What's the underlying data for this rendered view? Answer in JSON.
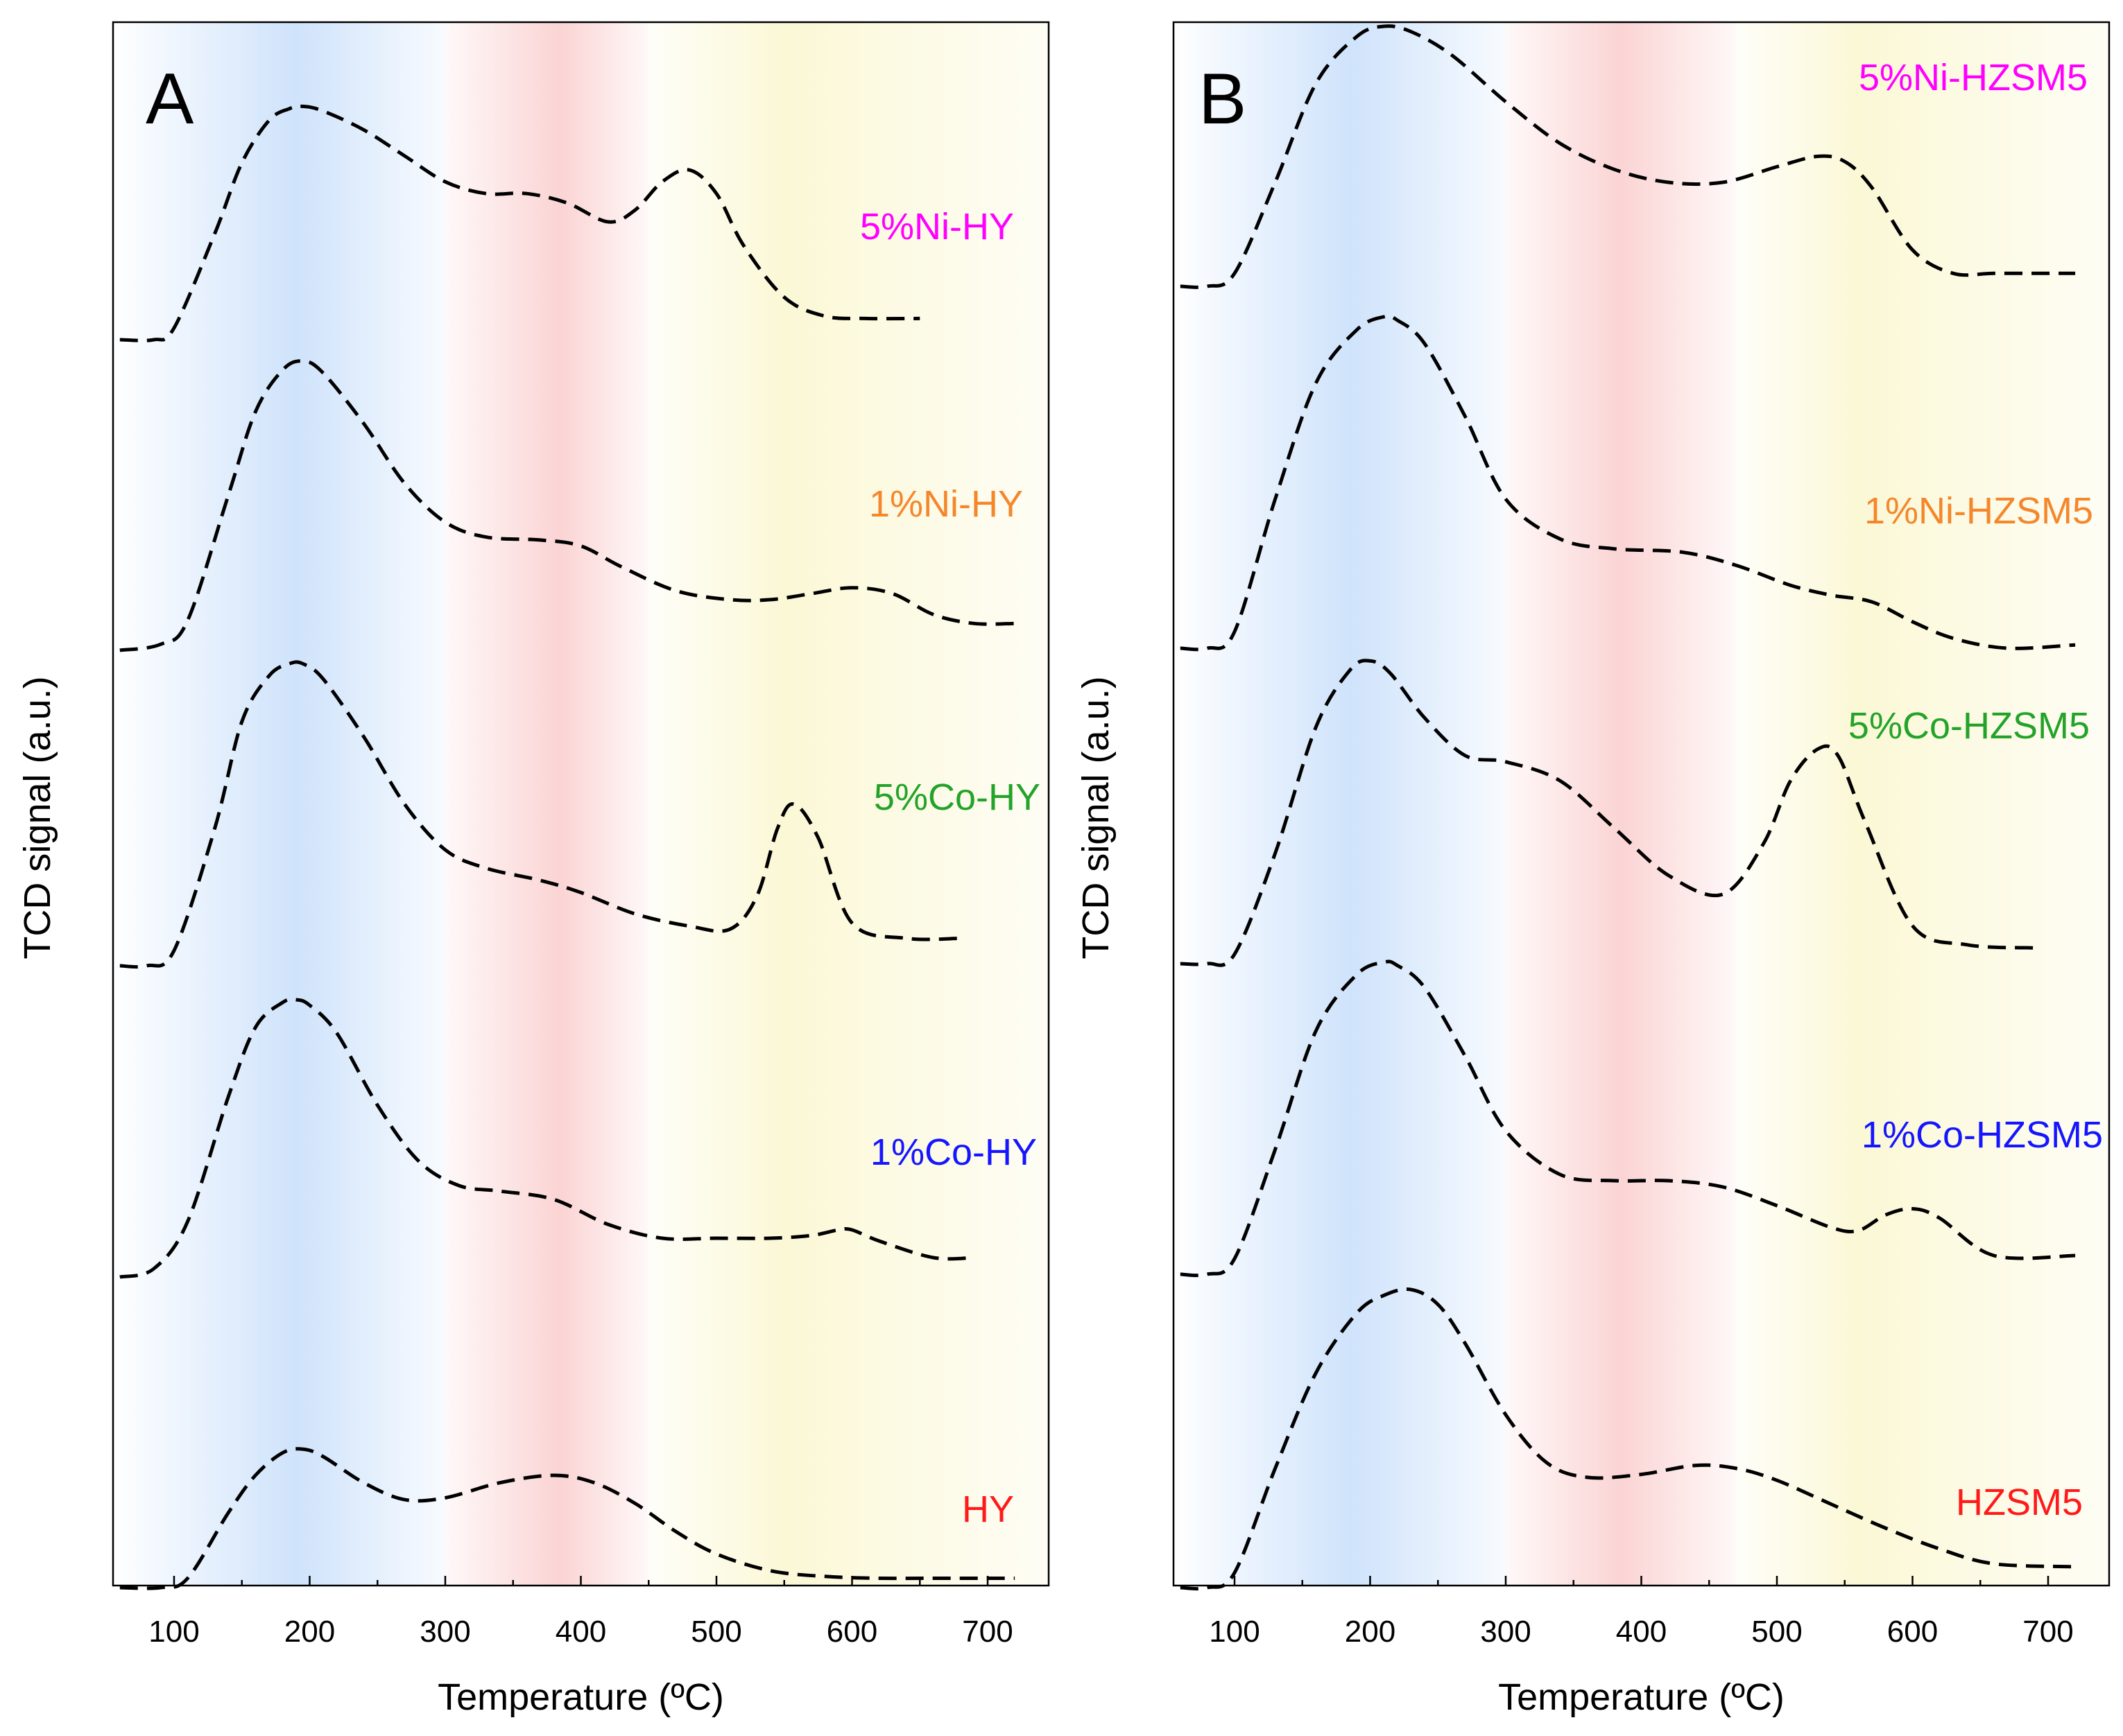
{
  "colors": {
    "band_low": "#cfe3fb",
    "band_mid": "#fbd4d4",
    "band_high": "#fbf8d6",
    "curve": "#000000"
  },
  "chart_data": [
    {
      "type": "line",
      "panel": "A",
      "xlabel": "Temperature (ºC)",
      "ylabel": "TCD signal (a.u.)",
      "xlim": [
        55,
        745
      ],
      "xticks": [
        100,
        200,
        300,
        400,
        500,
        600,
        700
      ],
      "yticks": "none",
      "shaded_regions": [
        {
          "from": 55,
          "to": 300,
          "peak": 190,
          "color": "#cfe3fb"
        },
        {
          "from": 300,
          "to": 450,
          "peak": 385,
          "color": "#fbd4d4"
        },
        {
          "from": 450,
          "to": 745,
          "peak": 550,
          "color": "#fbf8d6"
        }
      ],
      "series": [
        {
          "name": "5%Ni-HY",
          "label_color": "#ff00ff",
          "x": [
            60,
            85,
            100,
            130,
            150,
            170,
            185,
            195,
            210,
            240,
            270,
            300,
            330,
            360,
            390,
            420,
            440,
            460,
            480,
            500,
            520,
            550,
            580,
            610,
            650
          ],
          "y": [
            0.0,
            0.0,
            0.05,
            0.45,
            0.75,
            0.93,
            0.98,
            0.99,
            0.97,
            0.89,
            0.78,
            0.67,
            0.62,
            0.62,
            0.58,
            0.5,
            0.55,
            0.67,
            0.72,
            0.62,
            0.4,
            0.18,
            0.1,
            0.09,
            0.09
          ]
        },
        {
          "name": "1%Ni-HY",
          "label_color": "#f5872b",
          "x": [
            60,
            90,
            110,
            140,
            160,
            180,
            195,
            210,
            240,
            270,
            300,
            330,
            370,
            400,
            430,
            470,
            510,
            540,
            570,
            600,
            630,
            660,
            690,
            720
          ],
          "y": [
            0.0,
            0.02,
            0.1,
            0.52,
            0.8,
            0.94,
            0.97,
            0.93,
            0.76,
            0.56,
            0.43,
            0.38,
            0.37,
            0.35,
            0.28,
            0.2,
            0.17,
            0.17,
            0.19,
            0.21,
            0.19,
            0.12,
            0.09,
            0.09
          ]
        },
        {
          "name": "5%Co-HY",
          "label_color": "#23a32a",
          "x": [
            60,
            80,
            100,
            130,
            150,
            170,
            185,
            195,
            210,
            240,
            270,
            300,
            330,
            370,
            400,
            440,
            480,
            510,
            530,
            545,
            557,
            575,
            600,
            640,
            680
          ],
          "y": [
            0.0,
            0.0,
            0.05,
            0.45,
            0.8,
            0.95,
            0.99,
            0.99,
            0.94,
            0.75,
            0.53,
            0.38,
            0.32,
            0.28,
            0.24,
            0.17,
            0.13,
            0.12,
            0.23,
            0.45,
            0.53,
            0.42,
            0.14,
            0.09,
            0.09
          ]
        },
        {
          "name": "1%Co-HY",
          "label_color": "#1515ff",
          "x": [
            60,
            85,
            110,
            140,
            160,
            180,
            190,
            200,
            220,
            250,
            280,
            310,
            340,
            380,
            420,
            460,
            500,
            540,
            570,
            590,
            600,
            620,
            660,
            690
          ],
          "y": [
            0.0,
            0.03,
            0.2,
            0.65,
            0.9,
            0.99,
            1.0,
            0.98,
            0.88,
            0.62,
            0.42,
            0.33,
            0.31,
            0.28,
            0.19,
            0.14,
            0.14,
            0.14,
            0.15,
            0.17,
            0.17,
            0.13,
            0.07,
            0.07
          ]
        },
        {
          "name": "HY",
          "label_color": "#ff1a1a",
          "x": [
            60,
            90,
            110,
            140,
            160,
            180,
            195,
            210,
            240,
            270,
            300,
            340,
            380,
            410,
            440,
            470,
            500,
            540,
            580,
            620,
            660,
            700,
            720
          ],
          "y": [
            0.0,
            0.0,
            0.05,
            0.4,
            0.6,
            0.72,
            0.74,
            0.7,
            0.56,
            0.47,
            0.48,
            0.56,
            0.6,
            0.56,
            0.45,
            0.3,
            0.18,
            0.09,
            0.06,
            0.05,
            0.05,
            0.05,
            0.05
          ]
        }
      ]
    },
    {
      "type": "line",
      "panel": "B",
      "xlabel": "Temperature (ºC)",
      "ylabel": "TCD signal (a.u.)",
      "xlim": [
        55,
        745
      ],
      "xticks": [
        100,
        200,
        300,
        400,
        500,
        600,
        700
      ],
      "yticks": "none",
      "shaded_regions": [
        {
          "from": 55,
          "to": 300,
          "peak": 185,
          "color": "#cfe3fb"
        },
        {
          "from": 300,
          "to": 470,
          "peak": 385,
          "color": "#fbd4d4"
        },
        {
          "from": 470,
          "to": 745,
          "peak": 560,
          "color": "#fbf8d6"
        }
      ],
      "series": [
        {
          "name": "5%Ni-HZSM5",
          "label_color": "#ff00ff",
          "x": [
            60,
            80,
            100,
            130,
            160,
            190,
            210,
            230,
            260,
            300,
            340,
            380,
            420,
            460,
            500,
            530,
            550,
            570,
            600,
            630,
            660,
            700,
            720
          ],
          "y": [
            0.0,
            0.0,
            0.05,
            0.4,
            0.78,
            0.96,
            1.0,
            0.98,
            0.89,
            0.71,
            0.55,
            0.45,
            0.4,
            0.4,
            0.46,
            0.5,
            0.48,
            0.38,
            0.14,
            0.05,
            0.05,
            0.05,
            0.05
          ]
        },
        {
          "name": "1%Ni-HZSM5",
          "label_color": "#f5872b",
          "x": [
            60,
            80,
            100,
            130,
            160,
            190,
            210,
            220,
            240,
            270,
            300,
            340,
            380,
            430,
            470,
            510,
            540,
            570,
            600,
            630,
            670,
            720
          ],
          "y": [
            0.0,
            0.0,
            0.05,
            0.45,
            0.8,
            0.96,
            1.0,
            0.99,
            0.92,
            0.7,
            0.45,
            0.33,
            0.3,
            0.29,
            0.25,
            0.19,
            0.16,
            0.14,
            0.08,
            0.03,
            0.0,
            0.01
          ]
        },
        {
          "name": "5%Co-HZSM5",
          "label_color": "#23a32a",
          "x": [
            60,
            80,
            100,
            130,
            160,
            185,
            200,
            215,
            240,
            270,
            300,
            340,
            380,
            420,
            460,
            490,
            510,
            530,
            545,
            565,
            600,
            640,
            690
          ],
          "y": [
            0.0,
            0.0,
            0.03,
            0.35,
            0.75,
            0.93,
            0.96,
            0.92,
            0.78,
            0.66,
            0.64,
            0.58,
            0.43,
            0.28,
            0.22,
            0.38,
            0.58,
            0.68,
            0.66,
            0.45,
            0.12,
            0.06,
            0.05
          ]
        },
        {
          "name": "1%Co-HZSM5",
          "label_color": "#1515ff",
          "x": [
            60,
            80,
            100,
            130,
            160,
            190,
            210,
            220,
            240,
            270,
            300,
            340,
            380,
            420,
            460,
            500,
            540,
            560,
            580,
            600,
            620,
            660,
            720
          ],
          "y": [
            0.0,
            0.0,
            0.05,
            0.4,
            0.78,
            0.96,
            1.0,
            0.99,
            0.92,
            0.7,
            0.46,
            0.32,
            0.3,
            0.3,
            0.28,
            0.22,
            0.15,
            0.14,
            0.19,
            0.21,
            0.18,
            0.06,
            0.06
          ]
        },
        {
          "name": "HZSM5",
          "label_color": "#ff1a1a",
          "x": [
            60,
            80,
            100,
            130,
            160,
            190,
            210,
            230,
            250,
            270,
            300,
            330,
            360,
            400,
            440,
            470,
            500,
            540,
            580,
            620,
            660,
            720
          ],
          "y": [
            0.0,
            0.0,
            0.05,
            0.4,
            0.72,
            0.92,
            0.98,
            1.0,
            0.95,
            0.82,
            0.58,
            0.42,
            0.37,
            0.38,
            0.41,
            0.4,
            0.36,
            0.28,
            0.2,
            0.13,
            0.08,
            0.07
          ]
        }
      ]
    }
  ]
}
